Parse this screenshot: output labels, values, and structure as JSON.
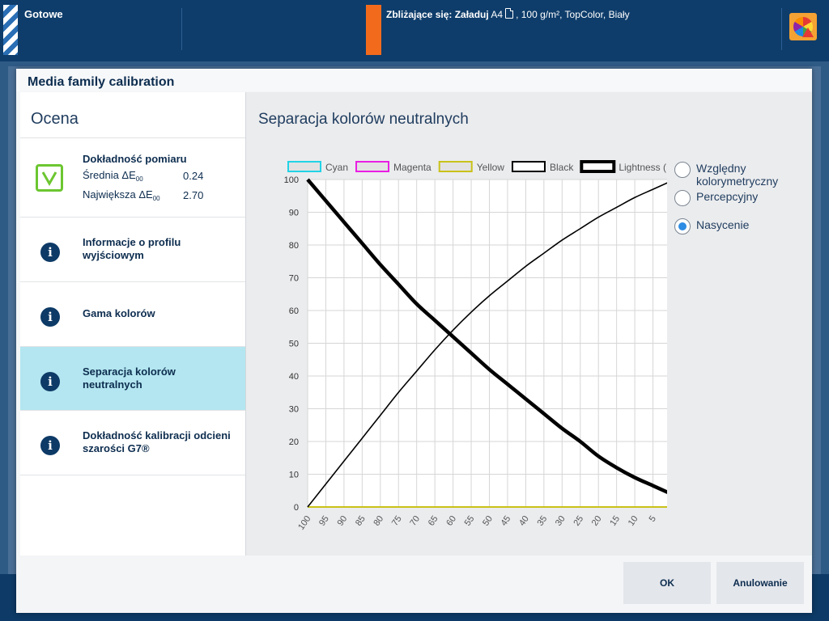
{
  "topbar": {
    "status": "Gotowe",
    "upcoming_label": "Zbliżające się: Załaduj",
    "upcoming_detail": "A4",
    "upcoming_rest": ", 100 g/m², TopColor, Biały"
  },
  "dialog": {
    "title": "Media family calibration",
    "left_heading": "Ocena",
    "nav": {
      "measurement": {
        "title": "Dokładność pomiaru",
        "avg_label": "Średnia ΔE",
        "avg_sub": "00",
        "avg_value": "0.24",
        "max_label": "Największa ΔE",
        "max_sub": "00",
        "max_value": "2.70"
      },
      "profile": "Informacje o profilu wyjściowym",
      "gamut": "Gama kolorów",
      "neutral": "Separacja kolorów neutralnych",
      "g7": "Dokładność kalibracji odcieni szarości G7®"
    },
    "chart_title": "Separacja kolorów neutralnych",
    "radios": {
      "relative": "Względny kolorymetryczny",
      "perceptual": "Percepcyjny",
      "saturation": "Nasycenie",
      "selected": "saturation"
    },
    "buttons": {
      "ok": "OK",
      "cancel": "Anulowanie"
    }
  },
  "chart_data": {
    "type": "line",
    "x": [
      100,
      95,
      90,
      85,
      80,
      75,
      70,
      65,
      60,
      55,
      50,
      45,
      40,
      35,
      30,
      25,
      20,
      15,
      10,
      5,
      0
    ],
    "x_reversed": true,
    "xlim": [
      100,
      0
    ],
    "ylim": [
      0,
      100
    ],
    "yticks": [
      0,
      10,
      20,
      30,
      40,
      50,
      60,
      70,
      80,
      90,
      100
    ],
    "grid": true,
    "legend_position": "top",
    "series": [
      {
        "name": "Cyan",
        "color": "#22d3e6",
        "width": 2,
        "values": [
          0,
          0,
          0,
          0,
          0,
          0,
          0,
          0,
          0,
          0,
          0,
          0,
          0,
          0,
          0,
          0,
          0,
          0,
          0,
          0,
          0
        ]
      },
      {
        "name": "Magenta",
        "color": "#e91ee3",
        "width": 2,
        "values": [
          0,
          0,
          0,
          0,
          0,
          0,
          0,
          0,
          0,
          0,
          0,
          0,
          0,
          0,
          0,
          0,
          0,
          0,
          0,
          0,
          0
        ]
      },
      {
        "name": "Yellow",
        "color": "#c9c21a",
        "width": 2,
        "values": [
          0,
          0,
          0,
          0,
          0,
          0,
          0,
          0,
          0,
          0,
          0,
          0,
          0,
          0,
          0,
          0,
          0,
          0,
          0,
          0,
          0
        ]
      },
      {
        "name": "Black",
        "color": "#000000",
        "width": 1.6,
        "values": [
          0,
          7,
          14,
          21,
          28,
          35,
          41.5,
          48,
          54,
          59.5,
          64.5,
          69,
          73.5,
          77.5,
          81.5,
          85,
          88.5,
          91.5,
          94.5,
          97,
          99.5
        ]
      },
      {
        "name": "Lightness (L)",
        "color": "#000000",
        "width": 4.5,
        "values": [
          100,
          93.5,
          87,
          80.5,
          74,
          68,
          62,
          57,
          52,
          47,
          42,
          37.5,
          33,
          28.5,
          24,
          20,
          15.5,
          12,
          9,
          6.5,
          4
        ]
      }
    ]
  }
}
